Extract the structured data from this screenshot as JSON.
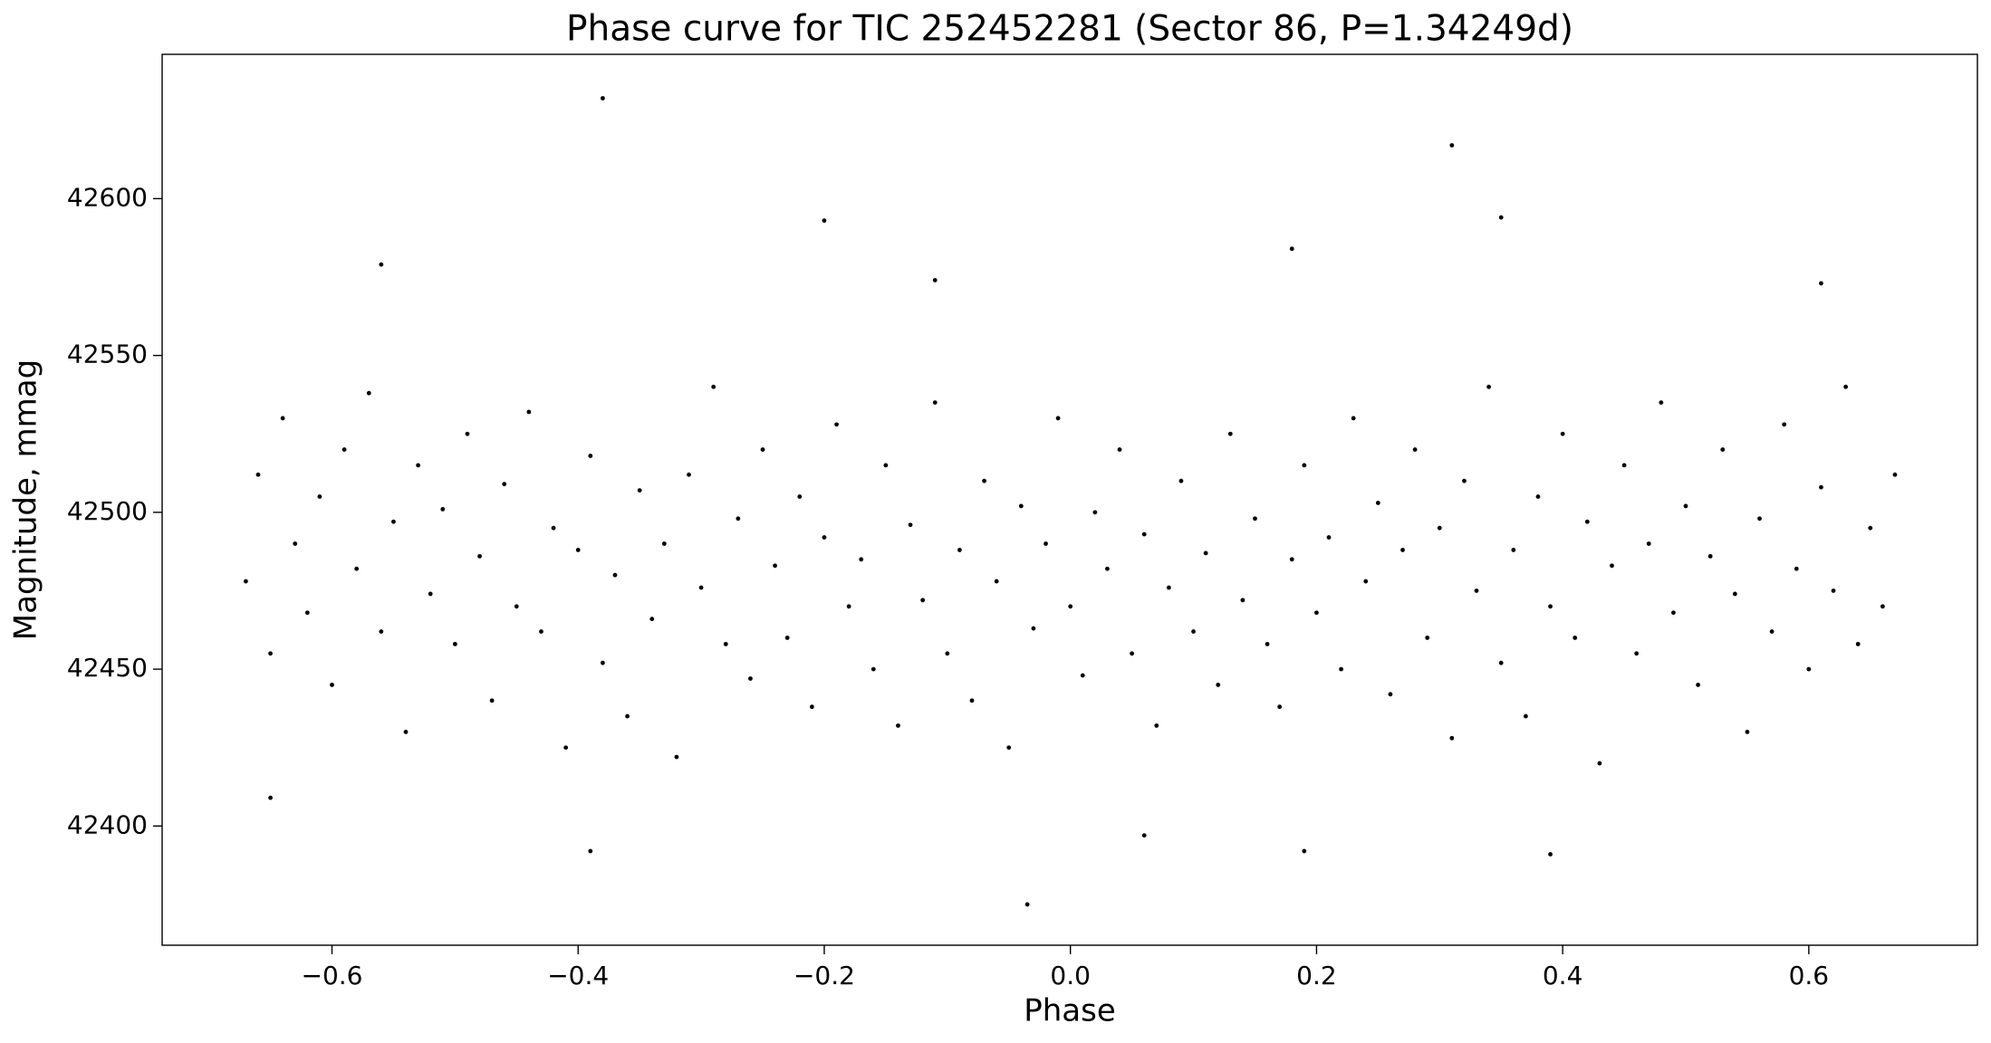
{
  "chart_data": {
    "type": "scatter",
    "title": "Phase curve for TIC 252452281 (Sector 86, P=1.34249d)",
    "xlabel": "Phase",
    "ylabel": "Magnitude, mmag",
    "xlim": [
      -0.738,
      0.737
    ],
    "ylim": [
      42362,
      42646
    ],
    "xticks": [
      {
        "value": -0.6,
        "label": "−0.6"
      },
      {
        "value": -0.4,
        "label": "−0.4"
      },
      {
        "value": -0.2,
        "label": "−0.2"
      },
      {
        "value": 0,
        "label": "0.0"
      },
      0.2,
      0.4,
      0.6
    ],
    "yticks": [
      42400,
      42450,
      42500,
      42550,
      42600
    ],
    "grid": false,
    "series": [
      {
        "color": "#000000",
        "x": [
          -0.67,
          -0.66,
          -0.65,
          -0.64,
          -0.63,
          -0.62,
          -0.61,
          -0.6,
          -0.59,
          -0.58,
          -0.57,
          -0.56,
          -0.55,
          -0.54,
          -0.53,
          -0.52,
          -0.51,
          -0.5,
          -0.49,
          -0.48,
          -0.47,
          -0.46,
          -0.45,
          -0.44,
          -0.43,
          -0.42,
          -0.41,
          -0.4,
          -0.39,
          -0.38,
          -0.37,
          -0.36,
          -0.35,
          -0.34,
          -0.33,
          -0.32,
          -0.31,
          -0.3,
          -0.29,
          -0.28,
          -0.27,
          -0.26,
          -0.25,
          -0.24,
          -0.23,
          -0.22,
          -0.21,
          -0.2,
          -0.19,
          -0.18,
          -0.17,
          -0.16,
          -0.15,
          -0.14,
          -0.13,
          -0.12,
          -0.11,
          -0.1,
          -0.09,
          -0.08,
          -0.07,
          -0.06,
          -0.05,
          -0.04,
          -0.03,
          -0.02,
          -0.01,
          0,
          0.01,
          0.02,
          0.03,
          0.04,
          0.05,
          0.06,
          0.07,
          0.08,
          0.09,
          0.1,
          0.11,
          0.12,
          0.13,
          0.14,
          0.15,
          0.16,
          0.17,
          0.18,
          0.19,
          0.2,
          0.21,
          0.22,
          0.23,
          0.24,
          0.25,
          0.26,
          0.27,
          0.28,
          0.29,
          0.3,
          0.31,
          0.32,
          0.33,
          0.34,
          0.35,
          0.36,
          0.37,
          0.38,
          0.39,
          0.4,
          0.41,
          0.42,
          0.43,
          0.44,
          0.45,
          0.46,
          0.47,
          0.48,
          0.49,
          0.5,
          0.51,
          0.52,
          0.53,
          0.54,
          0.55,
          0.56,
          0.57,
          0.58,
          0.59,
          0.6,
          0.61,
          0.62,
          0.63,
          0.64,
          0.65,
          0.66,
          0.67,
          -0.38,
          0.31,
          -0.2,
          0.35,
          0.18,
          -0.56,
          -0.035,
          0.39,
          -0.39,
          0.19,
          -0.65,
          0.06,
          0.61,
          -0.11
        ],
        "values": [
          42478,
          42512,
          42455,
          42530,
          42490,
          42468,
          42505,
          42445,
          42520,
          42482,
          42538,
          42462,
          42497,
          42430,
          42515,
          42474,
          42501,
          42458,
          42525,
          42486,
          42440,
          42509,
          42470,
          42532,
          42462,
          42495,
          42425,
          42488,
          42518,
          42452,
          42480,
          42435,
          42507,
          42466,
          42490,
          42422,
          42512,
          42476,
          42540,
          42458,
          42498,
          42447,
          42520,
          42483,
          42460,
          42505,
          42438,
          42492,
          42528,
          42470,
          42485,
          42450,
          42515,
          42432,
          42496,
          42472,
          42535,
          42455,
          42488,
          42440,
          42510,
          42478,
          42425,
          42502,
          42463,
          42490,
          42530,
          42470,
          42448,
          42500,
          42482,
          42520,
          42455,
          42493,
          42432,
          42476,
          42510,
          42462,
          42487,
          42445,
          42525,
          42472,
          42498,
          42458,
          42438,
          42485,
          42515,
          42468,
          42492,
          42450,
          42530,
          42478,
          42503,
          42442,
          42488,
          42520,
          42460,
          42495,
          42428,
          42510,
          42475,
          42540,
          42452,
          42488,
          42435,
          42505,
          42470,
          42525,
          42460,
          42497,
          42420,
          42483,
          42515,
          42455,
          42490,
          42535,
          42468,
          42502,
          42445,
          42486,
          42520,
          42474,
          42430,
          42498,
          42462,
          42528,
          42482,
          42450,
          42508,
          42475,
          42540,
          42458,
          42495,
          42470,
          42512,
          42632,
          42617,
          42593,
          42594,
          42584,
          42579,
          42375,
          42391,
          42392,
          42392,
          42409,
          42397,
          42573,
          42574
        ]
      }
    ]
  }
}
